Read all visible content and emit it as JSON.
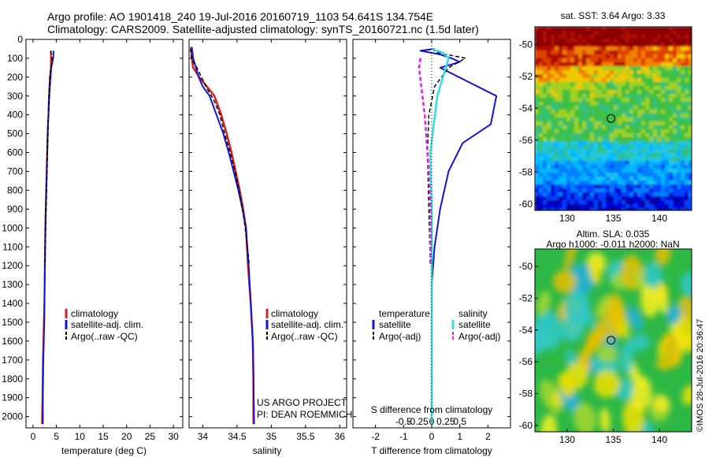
{
  "header": {
    "title_line1": "Argo profile: AO 1901418_240 19-Jul-2016 20160719_1103 54.641S 134.754E",
    "title_line2": "Climatology: CARS2009. Satellite-adjusted climatology: synTS_20160721.nc (1.5d later)"
  },
  "colors": {
    "climatology": "#d42020",
    "satellite": "#1414d2",
    "argo": "#000000",
    "sal_satellite": "#30e0e0",
    "sal_argo": "#e020e0"
  },
  "chart_data": [
    {
      "type": "line",
      "xlabel": "temperature (deg C)",
      "xlim": [
        -1.5,
        32
      ],
      "xticks": [
        0,
        5,
        10,
        15,
        20,
        25,
        30
      ],
      "xtick_labels": [
        "0",
        "5",
        "10",
        "15",
        "20",
        "25",
        "30"
      ],
      "ylim": [
        2060,
        0
      ],
      "yticks": [
        0,
        100,
        200,
        300,
        400,
        500,
        600,
        700,
        800,
        900,
        1000,
        1100,
        1200,
        1300,
        1400,
        1500,
        1600,
        1700,
        1800,
        1900,
        2000
      ],
      "ytick_labels": [
        "0",
        "100",
        "200",
        "300",
        "400",
        "500",
        "600",
        "700",
        "800",
        "900",
        "1000",
        "1100",
        "1200",
        "1300",
        "1400",
        "1500",
        "1600",
        "1700",
        "1800",
        "1900",
        "2000"
      ],
      "legend": [
        "climatology",
        "satellite-adj. clim.",
        "Argo(..raw -QC)"
      ],
      "series": [
        {
          "name": "climatology",
          "x": [
            3.8,
            3.8,
            3.6,
            3.4,
            3.3,
            3.1,
            3.0,
            2.9,
            2.8,
            2.7,
            2.6,
            2.5,
            2.4,
            2.3,
            2.2,
            2.1,
            2.0,
            1.9
          ],
          "y": [
            60,
            150,
            200,
            300,
            400,
            500,
            600,
            700,
            800,
            900,
            1000,
            1200,
            1400,
            1500,
            1600,
            1700,
            1900,
            2040
          ]
        },
        {
          "name": "satellite-adj. clim.",
          "x": [
            4.4,
            4.3,
            3.9,
            3.6,
            3.4,
            3.2,
            3.1,
            3.0,
            2.9,
            2.8,
            2.7,
            2.6,
            2.5,
            2.4,
            2.3,
            2.2,
            2.1,
            2.1
          ],
          "y": [
            60,
            100,
            150,
            250,
            350,
            450,
            550,
            650,
            750,
            850,
            950,
            1100,
            1300,
            1500,
            1600,
            1700,
            1900,
            2040
          ]
        },
        {
          "name": "Argo(..raw -QC)",
          "x": [
            3.8,
            4.1,
            3.6,
            3.3,
            3.2,
            3.0,
            2.8,
            2.6,
            2.5
          ],
          "y": [
            60,
            110,
            200,
            350,
            500,
            700,
            900,
            1100,
            1200
          ]
        }
      ]
    },
    {
      "type": "line",
      "xlabel": "salinity",
      "xlim": [
        33.8,
        36.1
      ],
      "xticks": [
        34,
        34.5,
        35,
        35.5,
        36
      ],
      "xtick_labels": [
        "34",
        "34.5",
        "35",
        "35.5",
        "36"
      ],
      "ylim": [
        2060,
        0
      ],
      "legend": [
        "climatology",
        "satellite-adj. clim.",
        "Argo(..raw -QC)"
      ],
      "annotation_line1": "US ARGO PROJECT",
      "annotation_line2": "PI: DEAN ROEMMICH",
      "series": [
        {
          "name": "climatology",
          "x": [
            33.83,
            33.84,
            33.86,
            33.95,
            34.06,
            34.17,
            34.27,
            34.35,
            34.42,
            34.48,
            34.54,
            34.59,
            34.63,
            34.66,
            34.7,
            34.73,
            34.74,
            34.74
          ],
          "y": [
            40,
            100,
            150,
            200,
            250,
            300,
            400,
            500,
            600,
            700,
            800,
            900,
            1000,
            1200,
            1400,
            1600,
            1800,
            2040
          ]
        },
        {
          "name": "satellite-adj. clim.",
          "x": [
            33.84,
            33.86,
            33.9,
            33.94,
            34.0,
            34.1,
            34.2,
            34.3,
            34.38,
            34.45,
            34.52,
            34.58,
            34.63,
            34.67,
            34.7,
            34.73,
            34.74,
            34.75
          ],
          "y": [
            40,
            100,
            150,
            200,
            250,
            300,
            400,
            500,
            600,
            700,
            800,
            900,
            1000,
            1200,
            1400,
            1600,
            1800,
            2040
          ]
        },
        {
          "name": "Argo(..raw -QC)",
          "x": [
            33.82,
            33.84,
            33.9,
            33.98,
            34.06,
            34.16,
            34.25,
            34.32,
            34.4,
            34.47,
            34.53,
            34.58,
            34.62,
            34.65,
            34.68
          ],
          "y": [
            50,
            110,
            140,
            200,
            260,
            320,
            400,
            500,
            600,
            700,
            800,
            900,
            1000,
            1100,
            1200
          ]
        }
      ]
    },
    {
      "type": "line",
      "xlabel": "T difference from climatology",
      "xlabel_top": "S difference from climatology",
      "xlim": [
        -2.8,
        2.8
      ],
      "xticks_bottom": [
        -2,
        -1,
        0,
        1,
        2
      ],
      "xtick_labels_bottom": [
        "-2",
        "-1",
        "0",
        "1",
        "2"
      ],
      "xtick_labels_top": [
        "-0.5",
        "-0.25",
        "0",
        "0.25",
        "0.5"
      ],
      "ylim": [
        2060,
        0
      ],
      "legend_temperature_title": "temperature",
      "legend_salinity_title": "salinity",
      "legend_temperature": [
        "satellite",
        "Argo(-adj)"
      ],
      "legend_salinity": [
        "satellite",
        "Argo(-adj)"
      ],
      "series": [
        {
          "name": "temperature satellite",
          "x": [
            0.1,
            -0.4,
            0.3,
            0.7,
            1.0,
            0.3,
            2.3,
            2.1,
            1.1,
            0.6,
            0.3,
            0.1,
            0.0,
            0.0,
            0.0,
            0.0
          ],
          "y": [
            50,
            60,
            80,
            100,
            120,
            150,
            300,
            450,
            550,
            700,
            900,
            1100,
            1300,
            1500,
            1800,
            2040
          ]
        },
        {
          "name": "temperature Argo(-adj)",
          "x": [
            0.0,
            0.2,
            1.2,
            0.6,
            0.1,
            -0.1,
            -0.15,
            -0.1,
            -0.05
          ],
          "y": [
            50,
            70,
            100,
            150,
            250,
            400,
            600,
            900,
            1200
          ]
        },
        {
          "name": "salinity satellite",
          "x": [
            0.0,
            0.4,
            0.6,
            0.5,
            0.2,
            -0.05,
            0.0,
            0.0,
            0.0,
            0.0,
            0.0
          ],
          "y": [
            50,
            70,
            100,
            150,
            300,
            600,
            900,
            1200,
            1500,
            1800,
            2040
          ]
        },
        {
          "name": "salinity Argo(-adj)",
          "x": [
            -0.4,
            -0.45,
            -0.25,
            -0.1,
            -0.05,
            -0.05
          ],
          "y": [
            100,
            150,
            400,
            700,
            900,
            1200
          ]
        }
      ]
    },
    {
      "type": "heatmap",
      "title": "sat. SST: 3.64 Argo: 3.33",
      "xticks": [
        130,
        135,
        140
      ],
      "xtick_labels": [
        "130",
        "135",
        "140"
      ],
      "yticks": [
        -50,
        -52,
        -54,
        -56,
        -58,
        -60
      ],
      "ytick_labels": [
        "-50",
        "-52",
        "-54",
        "-56",
        "-58",
        "-60"
      ],
      "xlim": [
        126.5,
        143.5
      ],
      "ylim": [
        -60.4,
        -48.9
      ],
      "marker": {
        "lon": 134.754,
        "lat": -54.641
      }
    },
    {
      "type": "heatmap",
      "title_line1": "Altim. SLA: 0.035",
      "title_line2": "Argo h1000: -0.011 h2000: NaN",
      "xticks": [
        130,
        135,
        140
      ],
      "xtick_labels": [
        "130",
        "135",
        "140"
      ],
      "yticks": [
        -50,
        -52,
        -54,
        -56,
        -58,
        -60
      ],
      "ytick_labels": [
        "-50",
        "-52",
        "-54",
        "-56",
        "-58",
        "-60"
      ],
      "xlim": [
        126.5,
        143.5
      ],
      "ylim": [
        -60.4,
        -48.9
      ],
      "marker": {
        "lon": 134.754,
        "lat": -54.641
      },
      "credit": "©IMOS 28-Jul-2016 20:36:47"
    }
  ]
}
